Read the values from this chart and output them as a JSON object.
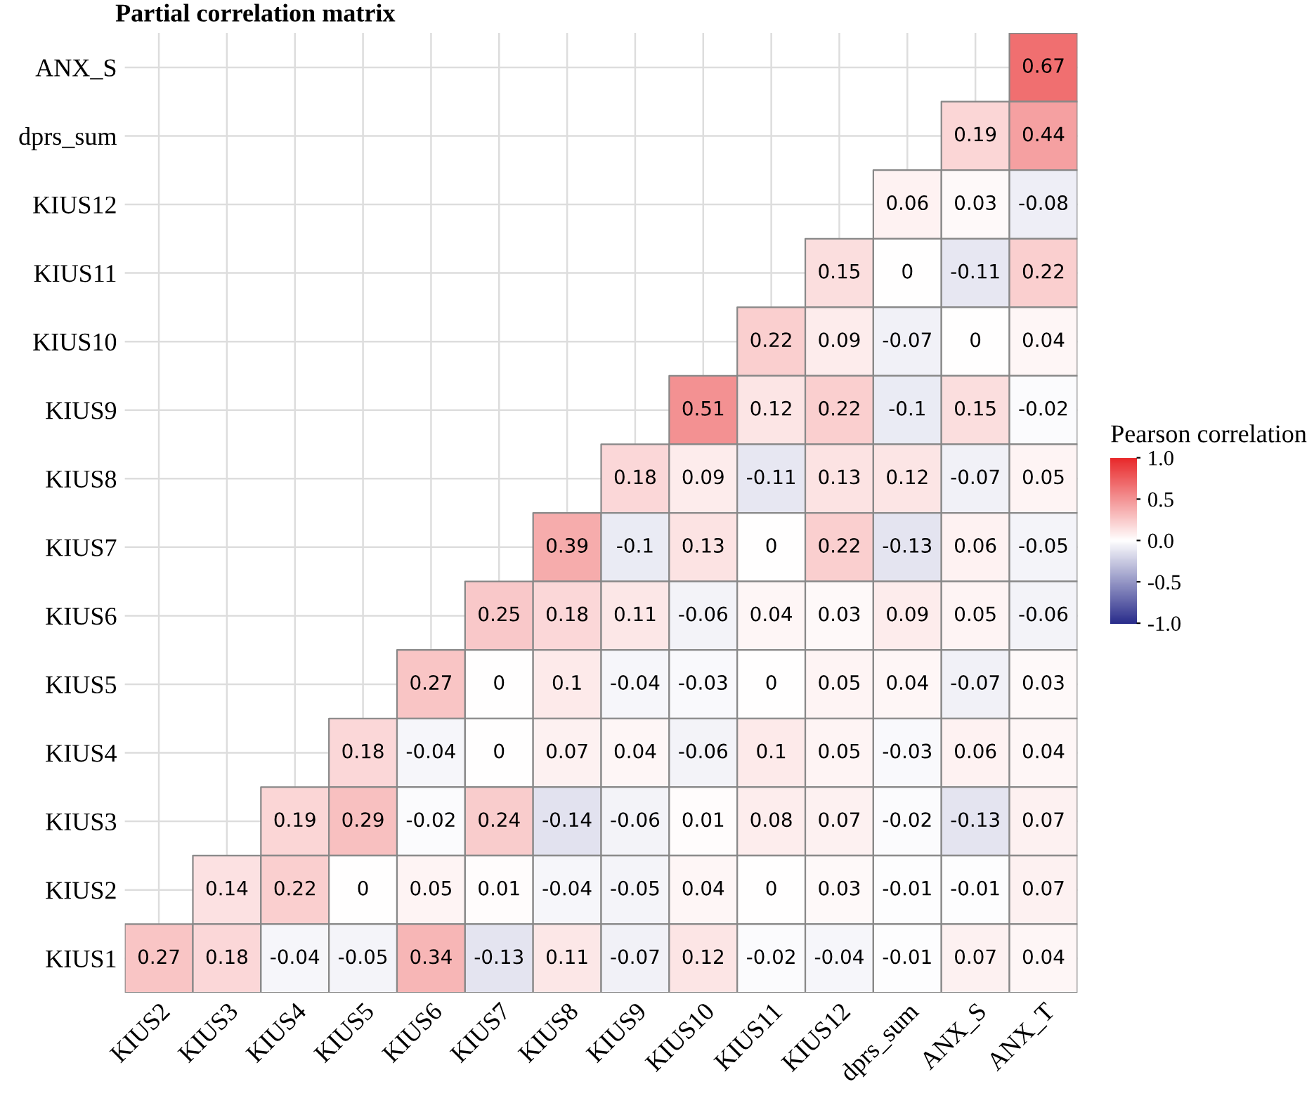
{
  "chart_data": {
    "type": "heatmap",
    "title": "Partial correlation matrix",
    "clabel": "Pearson correlation",
    "categories": [
      "KIUS2",
      "KIUS3",
      "KIUS4",
      "KIUS5",
      "KIUS6",
      "KIUS7",
      "KIUS8",
      "KIUS9",
      "KIUS10",
      "KIUS11",
      "KIUS12",
      "dprs_sum",
      "ANX_S",
      "ANX_T"
    ],
    "y_categories": [
      "ANX_S",
      "dprs_sum",
      "KIUS12",
      "KIUS11",
      "KIUS10",
      "KIUS9",
      "KIUS8",
      "KIUS7",
      "KIUS6",
      "KIUS5",
      "KIUS4",
      "KIUS3",
      "KIUS2",
      "KIUS1"
    ],
    "cells": [
      [
        null,
        null,
        null,
        null,
        null,
        null,
        null,
        null,
        null,
        null,
        null,
        null,
        null,
        0.67
      ],
      [
        null,
        null,
        null,
        null,
        null,
        null,
        null,
        null,
        null,
        null,
        null,
        null,
        0.19,
        0.44
      ],
      [
        null,
        null,
        null,
        null,
        null,
        null,
        null,
        null,
        null,
        null,
        null,
        0.06,
        0.03,
        -0.08
      ],
      [
        null,
        null,
        null,
        null,
        null,
        null,
        null,
        null,
        null,
        null,
        0.15,
        0,
        -0.11,
        0.22
      ],
      [
        null,
        null,
        null,
        null,
        null,
        null,
        null,
        null,
        null,
        0.22,
        0.09,
        -0.07,
        0,
        0.04
      ],
      [
        null,
        null,
        null,
        null,
        null,
        null,
        null,
        null,
        0.51,
        0.12,
        0.22,
        -0.1,
        0.15,
        -0.02
      ],
      [
        null,
        null,
        null,
        null,
        null,
        null,
        null,
        0.18,
        0.09,
        -0.11,
        0.13,
        0.12,
        -0.07,
        0.05
      ],
      [
        null,
        null,
        null,
        null,
        null,
        null,
        0.39,
        -0.1,
        0.13,
        0,
        0.22,
        -0.13,
        0.06,
        -0.05
      ],
      [
        null,
        null,
        null,
        null,
        null,
        0.25,
        0.18,
        0.11,
        -0.06,
        0.04,
        0.03,
        0.09,
        0.05,
        -0.06
      ],
      [
        null,
        null,
        null,
        null,
        0.27,
        0,
        0.1,
        -0.04,
        -0.03,
        0,
        0.05,
        0.04,
        -0.07,
        0.03
      ],
      [
        null,
        null,
        null,
        0.18,
        -0.04,
        0,
        0.07,
        0.04,
        -0.06,
        0.1,
        0.05,
        -0.03,
        0.06,
        0.04
      ],
      [
        null,
        null,
        0.19,
        0.29,
        -0.02,
        0.24,
        -0.14,
        -0.06,
        0.01,
        0.08,
        0.07,
        -0.02,
        -0.13,
        0.07
      ],
      [
        null,
        0.14,
        0.22,
        0,
        0.05,
        0.01,
        -0.04,
        -0.05,
        0.04,
        0,
        0.03,
        -0.01,
        -0.01,
        0.07
      ],
      [
        0.27,
        0.18,
        -0.04,
        -0.05,
        0.34,
        -0.13,
        0.11,
        -0.07,
        0.12,
        -0.02,
        -0.04,
        -0.01,
        0.07,
        0.04
      ]
    ],
    "clim": [
      -1,
      1
    ],
    "cticks": [
      {
        "value": -1,
        "label": "-1.0"
      },
      {
        "value": -0.5,
        "label": "-0.5"
      },
      {
        "value": 0,
        "label": "0.0"
      },
      {
        "value": 0.5,
        "label": "0.5"
      },
      {
        "value": 1,
        "label": "1.0"
      }
    ],
    "data_labels": true,
    "grid": true
  }
}
